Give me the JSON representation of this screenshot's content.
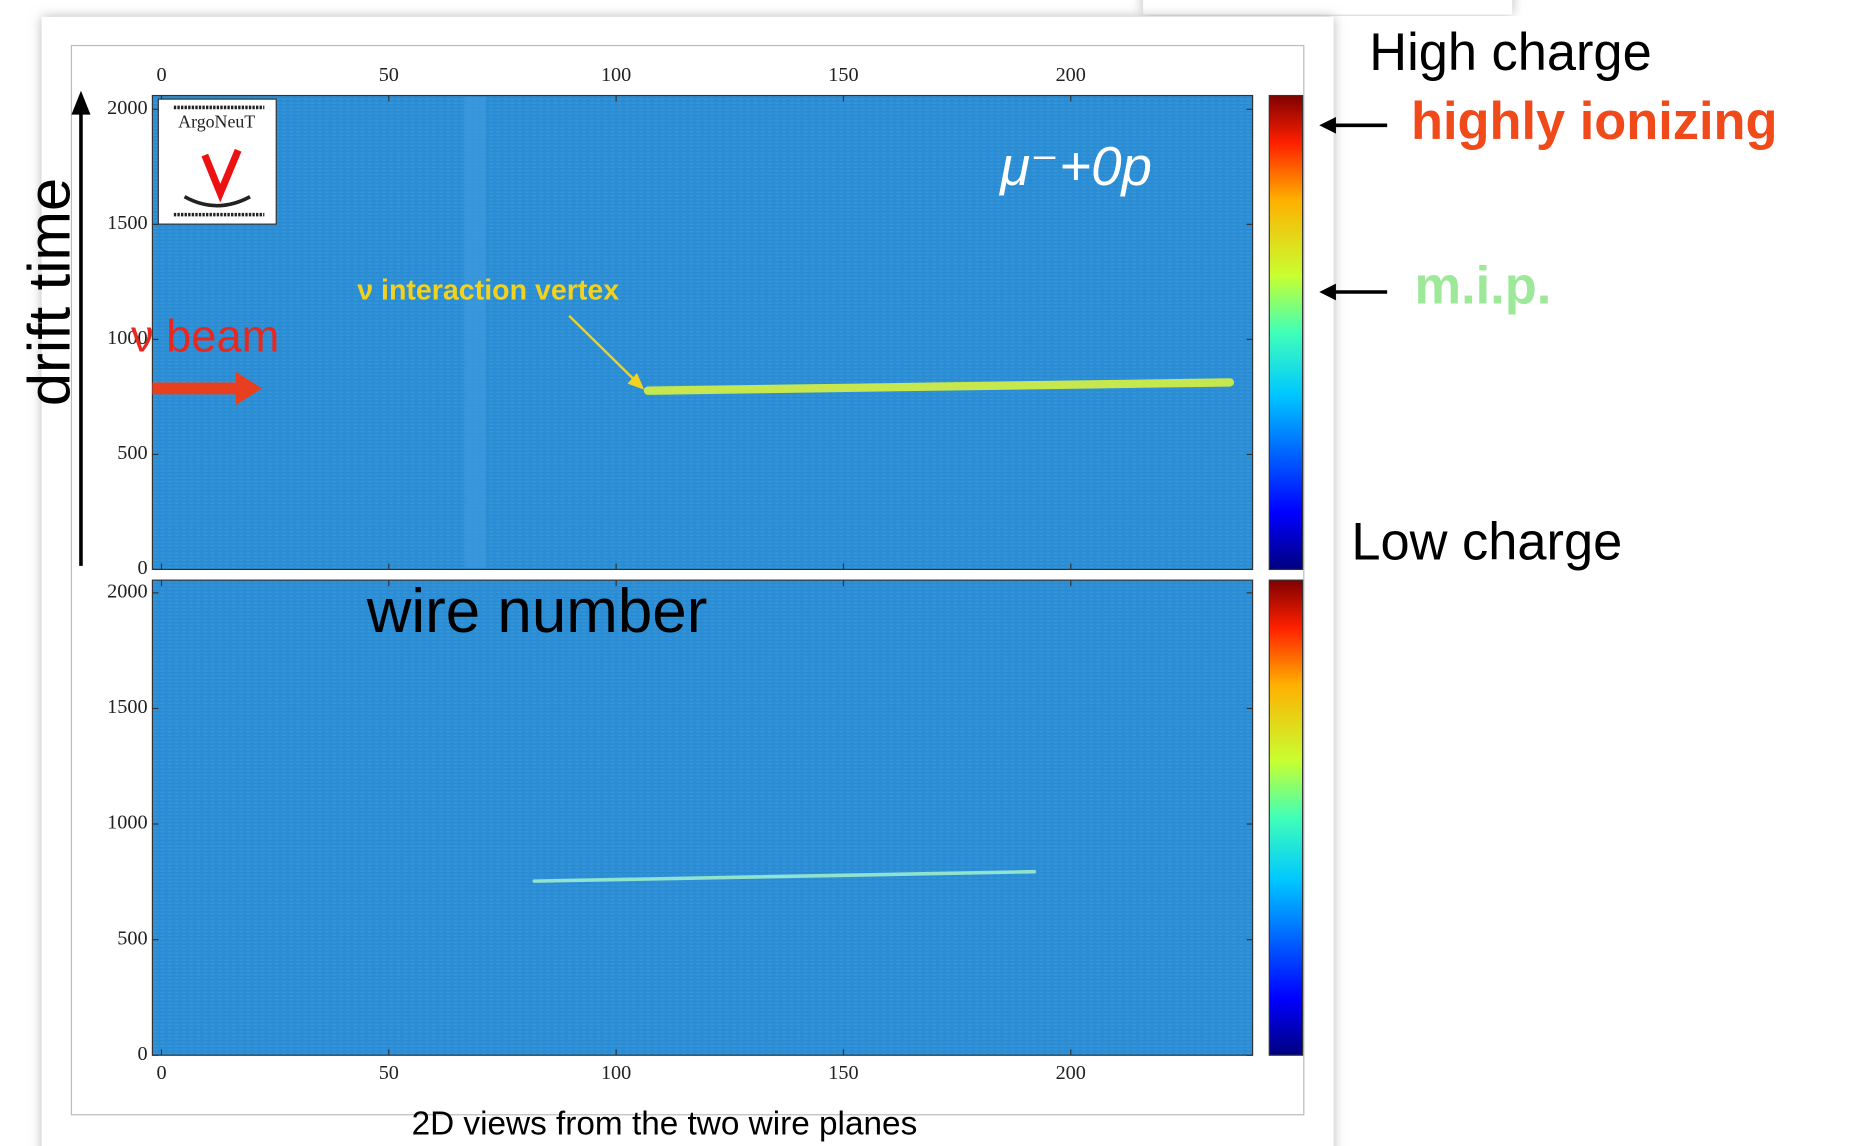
{
  "chart_data": [
    {
      "type": "heatmap",
      "color": "#2c8fd6",
      "track_color": "#c6e84e",
      "colormap": "jet",
      "xaxis": "top",
      "xlim": [
        -2,
        240
      ],
      "ylim": [
        0,
        2060
      ],
      "xticks": [
        0,
        50,
        100,
        150,
        200
      ],
      "yticks": [
        0,
        500,
        1000,
        1500,
        2000
      ],
      "x": [
        107,
        235
      ],
      "values": [
        777,
        813
      ]
    },
    {
      "type": "heatmap",
      "color": "#2c8fd6",
      "track_color": "#8fe3cf",
      "colormap": "jet",
      "xaxis": "bottom",
      "xlim": [
        -2,
        240
      ],
      "ylim": [
        0,
        2055
      ],
      "xticks": [
        0,
        50,
        100,
        150,
        200
      ],
      "yticks": [
        0,
        500,
        1000,
        1500,
        2000
      ],
      "x": [
        82,
        192
      ],
      "values": [
        753,
        794
      ]
    }
  ],
  "slide": {
    "logo": "ArgoNeuT",
    "y_label": "drift time",
    "x_label": "wire number",
    "caption": "2D views from the two wire planes",
    "beam": "ν beam",
    "vertex": "ν interaction vertex",
    "event": "μ⁻+0p",
    "high_charge": "High charge",
    "highly_ionizing": "highly ionizing",
    "mip": "m.i.p.",
    "low_charge": "Low charge"
  }
}
